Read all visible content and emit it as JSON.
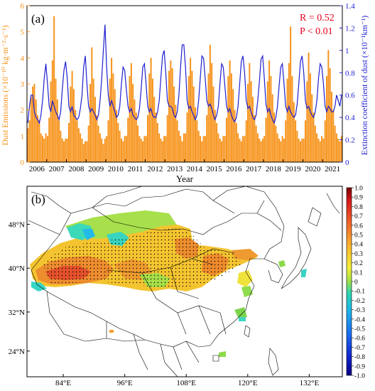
{
  "panel_a": {
    "label": "(a)",
    "stat_r": "R = 0.52",
    "stat_p": "P < 0.01",
    "stat_color": "#e8001c",
    "ylabel_left": "Dust Emissions (×10⁻¹⁰ kg·m⁻²·s⁻¹)",
    "ylabel_right": "Extinction coefficient of dust (×10⁻¹km⁻¹)",
    "xlabel": "Year",
    "bar_color": "#f7941d",
    "line_color": "#1f1fd0",
    "right_axis_color": "#1f1fd0",
    "left_axis_color": "#f7941d"
  },
  "panel_b": {
    "label": "(b)",
    "lat_ticks": [
      "48°N",
      "40°N",
      "32°N",
      "24°N"
    ],
    "lon_ticks": [
      "84°E",
      "96°E",
      "108°E",
      "120°E",
      "132°E"
    ],
    "colorbar_ticks": [
      "1.0",
      "0.9",
      "0.8",
      "0.7",
      "0.6",
      "0.5",
      "0.4",
      "0.3",
      "0.2",
      "0.1",
      "0",
      "-0.1",
      "-0.2",
      "-0.3",
      "-0.4",
      "-0.5",
      "-0.6",
      "-0.7",
      "-0.8",
      "-0.9",
      "-1.0"
    ]
  },
  "chart_data": [
    {
      "type": "bar",
      "title": "",
      "xlabel": "Year",
      "ylabel": "Dust Emissions (×10⁻¹⁰ kg·m⁻²·s⁻¹)",
      "y2label": "Extinction coefficient of dust (×10⁻¹km⁻¹)",
      "ylim": [
        0,
        6
      ],
      "y2lim": [
        0,
        1.4
      ],
      "yticks": [
        "0",
        "1",
        "2",
        "3",
        "4",
        "5",
        "6"
      ],
      "y2ticks": [
        "0",
        "0.2",
        "0.4",
        "0.6",
        "0.8",
        "1",
        "1.2",
        "1.4"
      ],
      "categories": [
        "2006",
        "2007",
        "2008",
        "2009",
        "2010",
        "2011",
        "2012",
        "2013",
        "2014",
        "2015",
        "2016",
        "2017",
        "2018",
        "2019",
        "2020",
        "2021"
      ],
      "series": [
        {
          "kind": "bar",
          "axis": "left",
          "monthly_values": [
            [
              1.3,
              1.6,
              2.5,
              2.9,
              3.0,
              2.4,
              1.8,
              1.6,
              1.1,
              1.0,
              0.9,
              1.1
            ],
            [
              1.0,
              1.7,
              3.1,
              3.9,
              5.6,
              3.2,
              2.4,
              1.6,
              1.2,
              0.9,
              0.8,
              0.9
            ],
            [
              0.9,
              1.5,
              2.9,
              3.5,
              2.8,
              2.0,
              1.6,
              1.3,
              1.1,
              0.9,
              0.7,
              0.8
            ],
            [
              0.8,
              1.4,
              3.0,
              4.4,
              3.2,
              2.5,
              1.8,
              1.4,
              1.1,
              0.9,
              0.7,
              0.9
            ],
            [
              1.0,
              1.6,
              3.2,
              4.0,
              3.4,
              2.8,
              2.0,
              1.5,
              1.2,
              0.9,
              0.8,
              1.0
            ],
            [
              1.0,
              1.7,
              3.3,
              3.8,
              3.0,
              2.4,
              1.9,
              1.4,
              1.0,
              0.9,
              0.8,
              1.0
            ],
            [
              1.0,
              1.8,
              3.4,
              4.0,
              3.2,
              2.5,
              1.9,
              1.5,
              1.1,
              0.9,
              0.8,
              1.0
            ],
            [
              1.0,
              1.8,
              3.5,
              3.9,
              3.6,
              2.9,
              2.2,
              1.6,
              1.2,
              1.0,
              0.8,
              1.1
            ],
            [
              1.1,
              1.9,
              3.3,
              4.0,
              3.5,
              2.9,
              2.1,
              1.6,
              1.2,
              1.0,
              0.8,
              1.0
            ],
            [
              1.0,
              1.8,
              3.4,
              4.5,
              3.8,
              2.9,
              2.0,
              1.5,
              1.1,
              0.9,
              0.8,
              1.0
            ],
            [
              1.0,
              1.7,
              3.3,
              3.9,
              3.4,
              2.8,
              2.0,
              1.5,
              1.1,
              0.9,
              0.8,
              1.0
            ],
            [
              1.0,
              1.6,
              3.0,
              3.8,
              3.1,
              2.5,
              1.8,
              1.4,
              1.1,
              0.9,
              0.8,
              0.9
            ],
            [
              1.0,
              1.7,
              3.1,
              3.9,
              3.3,
              2.6,
              1.9,
              1.4,
              1.1,
              0.9,
              0.8,
              1.0
            ],
            [
              0.9,
              1.6,
              3.2,
              3.8,
              5.2,
              3.3,
              2.3,
              1.6,
              1.2,
              0.9,
              0.8,
              0.9
            ],
            [
              0.9,
              1.6,
              3.1,
              4.2,
              3.4,
              2.6,
              1.9,
              1.4,
              1.1,
              0.9,
              0.8,
              1.0
            ],
            [
              0.9,
              1.6,
              3.3,
              4.3,
              3.6,
              2.7,
              2.0,
              1.4,
              1.1,
              0.9,
              0.8,
              1.0
            ]
          ]
        },
        {
          "kind": "line",
          "axis": "right",
          "monthly_values": [
            [
              0.35,
              0.5,
              0.6,
              0.6,
              0.45,
              0.4,
              0.38,
              0.35,
              0.42,
              0.55,
              0.75,
              0.88
            ],
            [
              0.7,
              0.5,
              0.45,
              0.55,
              0.5,
              0.45,
              0.42,
              0.38,
              0.45,
              0.65,
              0.82,
              0.9
            ],
            [
              0.75,
              0.5,
              0.45,
              0.5,
              0.42,
              0.4,
              0.38,
              0.4,
              0.48,
              0.6,
              0.85,
              0.95
            ],
            [
              0.7,
              0.5,
              0.45,
              0.48,
              0.45,
              0.42,
              0.38,
              0.42,
              0.55,
              0.75,
              1.0,
              1.23
            ],
            [
              0.85,
              0.6,
              0.5,
              0.55,
              0.5,
              0.45,
              0.4,
              0.42,
              0.5,
              0.7,
              0.85,
              0.82
            ],
            [
              0.65,
              0.5,
              0.45,
              0.48,
              0.42,
              0.4,
              0.38,
              0.4,
              0.48,
              0.65,
              0.85,
              0.88
            ],
            [
              0.7,
              0.5,
              0.45,
              0.48,
              0.42,
              0.4,
              0.4,
              0.45,
              0.55,
              0.75,
              0.95,
              1.0
            ],
            [
              0.8,
              0.55,
              0.5,
              0.5,
              0.48,
              0.42,
              0.4,
              0.45,
              0.6,
              0.85,
              1.05,
              1.05
            ],
            [
              0.85,
              0.55,
              0.48,
              0.5,
              0.45,
              0.42,
              0.38,
              0.42,
              0.55,
              0.75,
              0.95,
              0.93
            ],
            [
              0.75,
              0.55,
              0.5,
              0.52,
              0.48,
              0.42,
              0.38,
              0.42,
              0.5,
              0.7,
              0.88,
              0.85
            ],
            [
              0.68,
              0.5,
              0.45,
              0.48,
              0.42,
              0.38,
              0.36,
              0.4,
              0.5,
              0.7,
              0.9,
              0.95
            ],
            [
              0.8,
              0.55,
              0.48,
              0.5,
              0.45,
              0.4,
              0.38,
              0.42,
              0.55,
              0.72,
              0.92,
              0.95
            ],
            [
              0.75,
              0.52,
              0.45,
              0.48,
              0.42,
              0.38,
              0.35,
              0.4,
              0.5,
              0.68,
              0.85,
              0.88
            ],
            [
              0.7,
              0.5,
              0.45,
              0.5,
              0.45,
              0.42,
              0.4,
              0.42,
              0.52,
              0.7,
              0.9,
              0.95
            ],
            [
              0.8,
              0.55,
              0.48,
              0.5,
              0.45,
              0.42,
              0.4,
              0.45,
              0.55,
              0.75,
              0.88,
              0.85
            ],
            [
              0.7,
              0.5,
              0.45,
              0.5,
              0.48,
              0.45,
              0.45,
              0.5,
              0.6,
              0.55,
              0.5,
              0.6
            ]
          ]
        }
      ]
    },
    {
      "type": "heatmap",
      "title": "",
      "xticks": [
        "84°E",
        "96°E",
        "108°E",
        "120°E",
        "132°E"
      ],
      "yticks": [
        "48°N",
        "40°N",
        "32°N",
        "24°N"
      ],
      "colorbar_range": [
        -1.0,
        1.0
      ]
    }
  ]
}
